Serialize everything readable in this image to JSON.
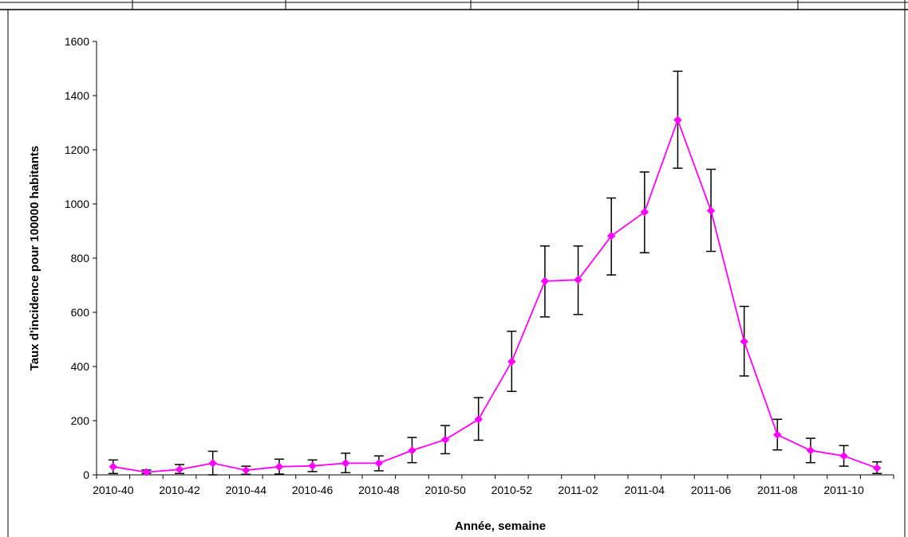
{
  "chart_data": {
    "type": "line",
    "xlabel": "Année, semaine",
    "ylabel": "Taux d'incidence pour 100000 habitants",
    "ylim": [
      0,
      1600
    ],
    "yticks": [
      0,
      200,
      400,
      600,
      800,
      1000,
      1200,
      1400,
      1600
    ],
    "x": [
      "2010-40",
      "2010-41",
      "2010-42",
      "2010-43",
      "2010-44",
      "2010-45",
      "2010-46",
      "2010-47",
      "2010-48",
      "2010-49",
      "2010-50",
      "2010-51",
      "2010-52",
      "2011-01",
      "2011-02",
      "2011-03",
      "2011-04",
      "2011-05",
      "2011-06",
      "2011-07",
      "2011-08",
      "2011-09",
      "2011-10",
      "2011-11"
    ],
    "x_tick_labels": [
      "2010-40",
      "2010-42",
      "2010-44",
      "2010-46",
      "2010-48",
      "2010-50",
      "2010-52",
      "2011-02",
      "2011-04",
      "2011-06",
      "2011-08",
      "2011-10"
    ],
    "series": [
      {
        "color": "#ff00ff",
        "marker": "diamond",
        "values": [
          30,
          10,
          20,
          43,
          17,
          30,
          33,
          43,
          43,
          90,
          130,
          205,
          418,
          715,
          720,
          882,
          970,
          1310,
          975,
          492,
          148,
          90,
          70,
          25
        ],
        "error_low": [
          5,
          5,
          5,
          0,
          2,
          3,
          12,
          8,
          15,
          45,
          78,
          128,
          308,
          583,
          592,
          738,
          820,
          1132,
          825,
          365,
          92,
          45,
          32,
          5
        ],
        "error_high": [
          55,
          18,
          38,
          87,
          32,
          58,
          55,
          80,
          70,
          138,
          182,
          285,
          530,
          845,
          845,
          1022,
          1118,
          1490,
          1128,
          622,
          205,
          135,
          108,
          48
        ]
      }
    ],
    "grid": false,
    "legend": "none"
  }
}
